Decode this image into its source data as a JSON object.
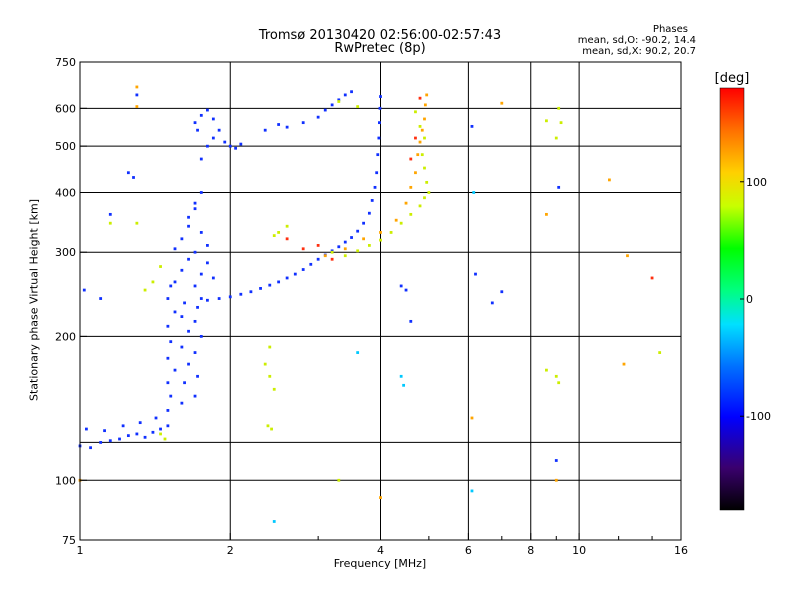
{
  "header": {
    "title_line1": "Tromsø 20130420 02:56:00-02:57:43",
    "title_line2": "RwPretec (8p)"
  },
  "phase_info": {
    "title": "Phases",
    "o_line": "mean, sd,O: -90.2, 14.4",
    "x_line": "mean, sd,X:  90.2, 20.7"
  },
  "colorbar": {
    "label": "[deg]",
    "ticks": [
      100,
      0,
      -100
    ],
    "range": [
      -180,
      180
    ]
  },
  "chart_data": {
    "type": "scatter",
    "xlabel": "Frequency [MHz]",
    "ylabel": "Stationary phase Virtual Height [km]",
    "xscale": "log",
    "yscale": "log",
    "xlim": [
      1,
      16
    ],
    "ylim": [
      75,
      750
    ],
    "xticks": [
      1,
      2,
      4,
      6,
      8,
      10,
      16
    ],
    "xgrid": [
      2,
      4,
      6,
      8,
      10
    ],
    "x_minor_ticks": [
      3,
      5,
      7,
      9,
      12,
      14
    ],
    "yticks": [
      75,
      100,
      200,
      300,
      400,
      500,
      600,
      750
    ],
    "ygrid": [
      100,
      120,
      200,
      300,
      400,
      500,
      600
    ],
    "grid": true,
    "series": [
      {
        "colour": "#1030ff",
        "points": [
          [
            1.0,
            118
          ],
          [
            1.05,
            117
          ],
          [
            1.1,
            120
          ],
          [
            1.15,
            121
          ],
          [
            1.2,
            122
          ],
          [
            1.25,
            124
          ],
          [
            1.3,
            125
          ],
          [
            1.35,
            123
          ],
          [
            1.4,
            126
          ],
          [
            1.45,
            128
          ],
          [
            1.5,
            130
          ],
          [
            1.03,
            128
          ],
          [
            1.12,
            127
          ],
          [
            1.22,
            130
          ],
          [
            1.32,
            132
          ],
          [
            1.42,
            135
          ],
          [
            1.5,
            140
          ],
          [
            1.52,
            150
          ],
          [
            1.5,
            160
          ],
          [
            1.55,
            170
          ],
          [
            1.5,
            180
          ],
          [
            1.52,
            195
          ],
          [
            1.5,
            210
          ],
          [
            1.55,
            225
          ],
          [
            1.5,
            240
          ],
          [
            1.52,
            255
          ],
          [
            1.6,
            145
          ],
          [
            1.62,
            160
          ],
          [
            1.65,
            175
          ],
          [
            1.6,
            190
          ],
          [
            1.65,
            205
          ],
          [
            1.6,
            220
          ],
          [
            1.62,
            235
          ],
          [
            1.7,
            150
          ],
          [
            1.72,
            165
          ],
          [
            1.7,
            185
          ],
          [
            1.75,
            200
          ],
          [
            1.7,
            215
          ],
          [
            1.72,
            230
          ],
          [
            1.55,
            260
          ],
          [
            1.6,
            275
          ],
          [
            1.65,
            290
          ],
          [
            1.55,
            305
          ],
          [
            1.6,
            320
          ],
          [
            1.65,
            340
          ],
          [
            1.7,
            255
          ],
          [
            1.75,
            270
          ],
          [
            1.8,
            285
          ],
          [
            1.85,
            265
          ],
          [
            1.7,
            300
          ],
          [
            1.8,
            310
          ],
          [
            1.75,
            330
          ],
          [
            1.65,
            355
          ],
          [
            1.7,
            380
          ],
          [
            1.75,
            400
          ],
          [
            1.7,
            370
          ],
          [
            1.75,
            240
          ],
          [
            1.8,
            238
          ],
          [
            1.9,
            240
          ],
          [
            2.0,
            242
          ],
          [
            2.1,
            245
          ],
          [
            2.2,
            248
          ],
          [
            2.3,
            252
          ],
          [
            2.4,
            256
          ],
          [
            2.5,
            260
          ],
          [
            2.6,
            265
          ],
          [
            2.7,
            270
          ],
          [
            2.8,
            276
          ],
          [
            2.9,
            283
          ],
          [
            3.0,
            290
          ],
          [
            3.1,
            296
          ],
          [
            3.2,
            302
          ],
          [
            3.3,
            308
          ],
          [
            3.4,
            315
          ],
          [
            3.5,
            322
          ],
          [
            3.6,
            332
          ],
          [
            3.7,
            345
          ],
          [
            3.8,
            362
          ],
          [
            3.85,
            385
          ],
          [
            3.9,
            410
          ],
          [
            3.93,
            440
          ],
          [
            3.95,
            480
          ],
          [
            3.97,
            520
          ],
          [
            3.98,
            560
          ],
          [
            3.99,
            600
          ],
          [
            4.0,
            635
          ],
          [
            1.75,
            470
          ],
          [
            1.8,
            500
          ],
          [
            1.85,
            520
          ],
          [
            1.9,
            540
          ],
          [
            1.95,
            510
          ],
          [
            2.0,
            500
          ],
          [
            2.05,
            495
          ],
          [
            2.1,
            505
          ],
          [
            1.7,
            560
          ],
          [
            1.75,
            580
          ],
          [
            1.8,
            595
          ],
          [
            1.72,
            540
          ],
          [
            1.85,
            570
          ],
          [
            2.35,
            540
          ],
          [
            2.5,
            555
          ],
          [
            2.6,
            548
          ],
          [
            2.8,
            560
          ],
          [
            3.0,
            575
          ],
          [
            3.1,
            595
          ],
          [
            3.2,
            610
          ],
          [
            3.3,
            625
          ],
          [
            3.4,
            640
          ],
          [
            3.5,
            650
          ],
          [
            1.3,
            640
          ],
          [
            1.25,
            440
          ],
          [
            1.15,
            360
          ],
          [
            1.1,
            240
          ],
          [
            1.02,
            250
          ],
          [
            1.28,
            430
          ],
          [
            6.1,
            550
          ],
          [
            9.1,
            410
          ],
          [
            9.0,
            110
          ],
          [
            6.2,
            270
          ],
          [
            4.5,
            250
          ],
          [
            4.6,
            215
          ],
          [
            4.4,
            255
          ],
          [
            6.7,
            235
          ],
          [
            7.0,
            248
          ]
        ]
      },
      {
        "colour": "#00c8ff",
        "points": [
          [
            4.4,
            165
          ],
          [
            4.45,
            158
          ],
          [
            6.1,
            95
          ],
          [
            6.15,
            400
          ],
          [
            3.6,
            185
          ],
          [
            2.45,
            82
          ]
        ]
      },
      {
        "colour": "#ccee00",
        "points": [
          [
            1.45,
            125
          ],
          [
            1.48,
            122
          ],
          [
            1.4,
            260
          ],
          [
            1.35,
            250
          ],
          [
            1.45,
            280
          ],
          [
            2.4,
            190
          ],
          [
            2.35,
            175
          ],
          [
            2.4,
            165
          ],
          [
            2.45,
            155
          ],
          [
            2.38,
            130
          ],
          [
            2.42,
            128
          ],
          [
            2.5,
            330
          ],
          [
            2.6,
            340
          ],
          [
            2.45,
            325
          ],
          [
            3.2,
            300
          ],
          [
            3.4,
            295
          ],
          [
            3.6,
            302
          ],
          [
            3.8,
            310
          ],
          [
            4.0,
            318
          ],
          [
            4.2,
            330
          ],
          [
            4.4,
            345
          ],
          [
            4.6,
            360
          ],
          [
            4.8,
            375
          ],
          [
            4.9,
            390
          ],
          [
            3.3,
            620
          ],
          [
            3.6,
            605
          ],
          [
            4.7,
            590
          ],
          [
            4.8,
            550
          ],
          [
            4.9,
            520
          ],
          [
            4.85,
            480
          ],
          [
            4.9,
            450
          ],
          [
            4.95,
            420
          ],
          [
            5.0,
            400
          ],
          [
            9.1,
            600
          ],
          [
            8.6,
            565
          ],
          [
            9.2,
            560
          ],
          [
            9.0,
            520
          ],
          [
            9.0,
            165
          ],
          [
            9.1,
            160
          ],
          [
            14.5,
            185
          ],
          [
            1.3,
            345
          ],
          [
            1.15,
            345
          ],
          [
            8.6,
            170
          ],
          [
            3.3,
            100
          ]
        ]
      },
      {
        "colour": "#ffa500",
        "points": [
          [
            3.1,
            295
          ],
          [
            3.4,
            305
          ],
          [
            3.7,
            320
          ],
          [
            4.0,
            330
          ],
          [
            4.3,
            350
          ],
          [
            4.5,
            380
          ],
          [
            4.6,
            410
          ],
          [
            4.7,
            440
          ],
          [
            4.75,
            480
          ],
          [
            4.8,
            510
          ],
          [
            4.85,
            540
          ],
          [
            4.9,
            570
          ],
          [
            4.92,
            610
          ],
          [
            4.95,
            640
          ],
          [
            6.1,
            135
          ],
          [
            7.0,
            615
          ],
          [
            9.0,
            100
          ],
          [
            11.5,
            425
          ],
          [
            12.5,
            295
          ],
          [
            12.3,
            175
          ],
          [
            1.3,
            665
          ],
          [
            1.3,
            605
          ],
          [
            1.0,
            100
          ],
          [
            4.0,
            92
          ],
          [
            8.6,
            360
          ]
        ]
      },
      {
        "colour": "#ff3010",
        "points": [
          [
            2.6,
            320
          ],
          [
            2.8,
            305
          ],
          [
            3.0,
            310
          ],
          [
            3.2,
            290
          ],
          [
            4.6,
            470
          ],
          [
            4.7,
            520
          ],
          [
            14.0,
            265
          ],
          [
            4.8,
            630
          ]
        ]
      }
    ]
  }
}
